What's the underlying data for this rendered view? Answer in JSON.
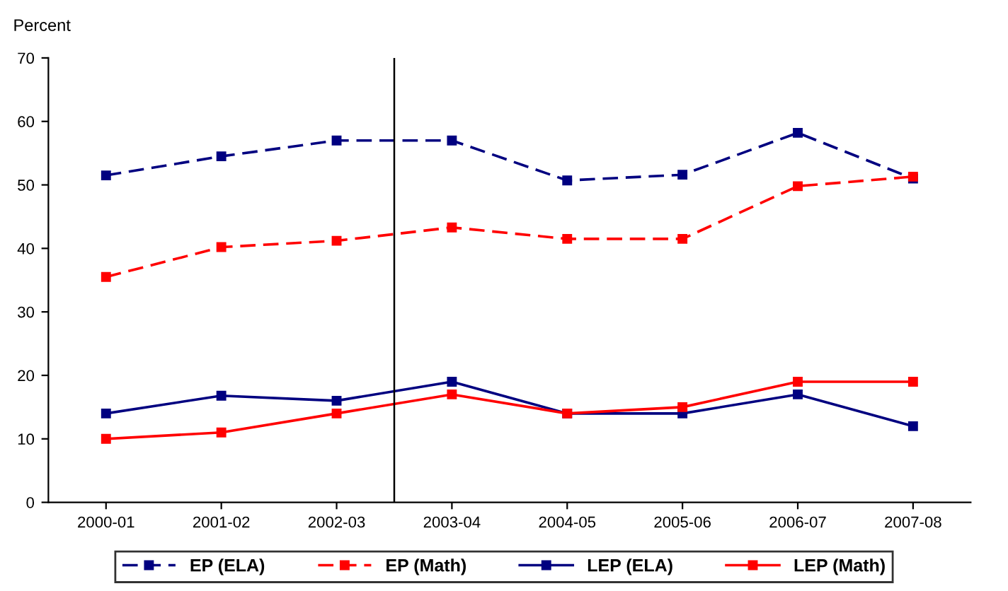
{
  "chart_data": {
    "type": "line",
    "ylabel": "Percent",
    "categories": [
      "2000-01",
      "2001-02",
      "2002-03",
      "2003-04",
      "2004-05",
      "2005-06",
      "2006-07",
      "2007-08"
    ],
    "series": [
      {
        "name": "EP (ELA)",
        "color": "#000080",
        "line_style": "dashed",
        "values": [
          51.5,
          54.5,
          57,
          57,
          50.7,
          51.6,
          58.2,
          51
        ]
      },
      {
        "name": "EP (Math)",
        "color": "#ff0000",
        "line_style": "dashed",
        "values": [
          35.5,
          40.2,
          41.2,
          43.3,
          41.5,
          41.5,
          49.8,
          51.3
        ]
      },
      {
        "name": "LEP (ELA)",
        "color": "#000080",
        "line_style": "solid",
        "values": [
          14,
          16.8,
          16,
          19,
          14,
          14,
          17,
          12
        ]
      },
      {
        "name": "LEP (Math)",
        "color": "#ff0000",
        "line_style": "solid",
        "values": [
          10,
          11,
          14,
          17,
          14,
          15,
          19,
          19
        ]
      }
    ],
    "ylim": [
      0,
      70
    ],
    "yticks": [
      0,
      10,
      20,
      30,
      40,
      50,
      60,
      70
    ],
    "marker": "square",
    "grid": false,
    "legend": "bottom"
  }
}
